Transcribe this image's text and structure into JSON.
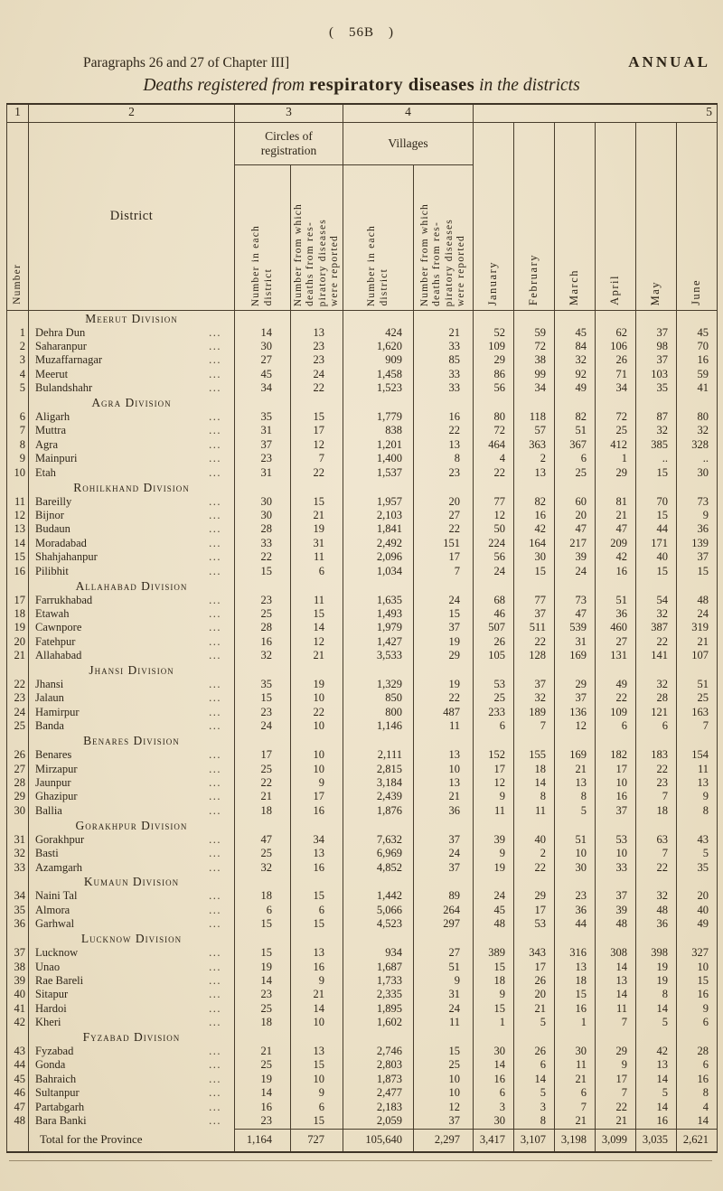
{
  "page": {
    "page_number": "( 56B )",
    "left_note": "Paragraphs 26 and 27 of Chapter III]",
    "right_note": "ANNUAL",
    "title_prefix": "Deaths registered from ",
    "title_bold": "respiratory diseases",
    "title_suffix": " in the districts"
  },
  "table": {
    "column_numbers": [
      "1",
      "2",
      "3",
      "4",
      "5"
    ],
    "headers": {
      "number_col": "Number",
      "district": "District",
      "circles_group": "Circles of registration",
      "villages_group": "Villages",
      "sub_number_each_lines": [
        "Number in each",
        "district"
      ],
      "sub_number_reported_lines": [
        "Number from which",
        "deaths from res-",
        "piratory diseases",
        "were reported"
      ],
      "months": [
        "January",
        "February",
        "March",
        "April",
        "May",
        "June"
      ]
    },
    "leader_dots": "...",
    "rows": [
      {
        "type": "division",
        "label": "Meerut Division"
      },
      {
        "type": "district",
        "num": "1",
        "name": "Dehra Dun",
        "values": [
          "14",
          "13",
          "424",
          "21",
          "52",
          "59",
          "45",
          "62",
          "37",
          "45"
        ]
      },
      {
        "type": "district",
        "num": "2",
        "name": "Saharanpur",
        "values": [
          "30",
          "23",
          "1,620",
          "33",
          "109",
          "72",
          "84",
          "106",
          "98",
          "70"
        ]
      },
      {
        "type": "district",
        "num": "3",
        "name": "Muzaffarnagar",
        "values": [
          "27",
          "23",
          "909",
          "85",
          "29",
          "38",
          "32",
          "26",
          "37",
          "16"
        ]
      },
      {
        "type": "district",
        "num": "4",
        "name": "Meerut",
        "values": [
          "45",
          "24",
          "1,458",
          "33",
          "86",
          "99",
          "92",
          "71",
          "103",
          "59"
        ]
      },
      {
        "type": "district",
        "num": "5",
        "name": "Bulandshahr",
        "values": [
          "34",
          "22",
          "1,523",
          "33",
          "56",
          "34",
          "49",
          "34",
          "35",
          "41"
        ]
      },
      {
        "type": "division",
        "label": "Agra Division"
      },
      {
        "type": "district",
        "num": "6",
        "name": "Aligarh",
        "values": [
          "35",
          "15",
          "1,779",
          "16",
          "80",
          "118",
          "82",
          "72",
          "87",
          "80"
        ]
      },
      {
        "type": "district",
        "num": "7",
        "name": "Muttra",
        "values": [
          "31",
          "17",
          "838",
          "22",
          "72",
          "57",
          "51",
          "25",
          "32",
          "32"
        ]
      },
      {
        "type": "district",
        "num": "8",
        "name": "Agra",
        "values": [
          "37",
          "12",
          "1,201",
          "13",
          "464",
          "363",
          "367",
          "412",
          "385",
          "328"
        ]
      },
      {
        "type": "district",
        "num": "9",
        "name": "Mainpuri",
        "values": [
          "23",
          "7",
          "1,400",
          "8",
          "4",
          "2",
          "6",
          "1",
          "..",
          ".."
        ]
      },
      {
        "type": "district",
        "num": "10",
        "name": "Etah",
        "values": [
          "31",
          "22",
          "1,537",
          "23",
          "22",
          "13",
          "25",
          "29",
          "15",
          "30"
        ]
      },
      {
        "type": "division",
        "label": "Rohilkhand Division"
      },
      {
        "type": "district",
        "num": "11",
        "name": "Bareilly",
        "values": [
          "30",
          "15",
          "1,957",
          "20",
          "77",
          "82",
          "60",
          "81",
          "70",
          "73"
        ]
      },
      {
        "type": "district",
        "num": "12",
        "name": "Bijnor",
        "values": [
          "30",
          "21",
          "2,103",
          "27",
          "12",
          "16",
          "20",
          "21",
          "15",
          "9"
        ]
      },
      {
        "type": "district",
        "num": "13",
        "name": "Budaun",
        "values": [
          "28",
          "19",
          "1,841",
          "22",
          "50",
          "42",
          "47",
          "47",
          "44",
          "36"
        ]
      },
      {
        "type": "district",
        "num": "14",
        "name": "Moradabad",
        "values": [
          "33",
          "31",
          "2,492",
          "151",
          "224",
          "164",
          "217",
          "209",
          "171",
          "139"
        ]
      },
      {
        "type": "district",
        "num": "15",
        "name": "Shahjahanpur",
        "values": [
          "22",
          "11",
          "2,096",
          "17",
          "56",
          "30",
          "39",
          "42",
          "40",
          "37"
        ]
      },
      {
        "type": "district",
        "num": "16",
        "name": "Pilibhit",
        "values": [
          "15",
          "6",
          "1,034",
          "7",
          "24",
          "15",
          "24",
          "16",
          "15",
          "15"
        ]
      },
      {
        "type": "division",
        "label": "Allahabad Division"
      },
      {
        "type": "district",
        "num": "17",
        "name": "Farrukhabad",
        "values": [
          "23",
          "11",
          "1,635",
          "24",
          "68",
          "77",
          "73",
          "51",
          "54",
          "48"
        ]
      },
      {
        "type": "district",
        "num": "18",
        "name": "Etawah",
        "values": [
          "25",
          "15",
          "1,493",
          "15",
          "46",
          "37",
          "47",
          "36",
          "32",
          "24"
        ]
      },
      {
        "type": "district",
        "num": "19",
        "name": "Cawnpore",
        "values": [
          "28",
          "14",
          "1,979",
          "37",
          "507",
          "511",
          "539",
          "460",
          "387",
          "319"
        ]
      },
      {
        "type": "district",
        "num": "20",
        "name": "Fatehpur",
        "values": [
          "16",
          "12",
          "1,427",
          "19",
          "26",
          "22",
          "31",
          "27",
          "22",
          "21"
        ]
      },
      {
        "type": "district",
        "num": "21",
        "name": "Allahabad",
        "values": [
          "32",
          "21",
          "3,533",
          "29",
          "105",
          "128",
          "169",
          "131",
          "141",
          "107"
        ]
      },
      {
        "type": "division",
        "label": "Jhansi Division"
      },
      {
        "type": "district",
        "num": "22",
        "name": "Jhansi",
        "values": [
          "35",
          "19",
          "1,329",
          "19",
          "53",
          "37",
          "29",
          "49",
          "32",
          "51"
        ]
      },
      {
        "type": "district",
        "num": "23",
        "name": "Jalaun",
        "values": [
          "15",
          "10",
          "850",
          "22",
          "25",
          "32",
          "37",
          "22",
          "28",
          "25"
        ]
      },
      {
        "type": "district",
        "num": "24",
        "name": "Hamirpur",
        "values": [
          "23",
          "22",
          "800",
          "487",
          "233",
          "189",
          "136",
          "109",
          "121",
          "163"
        ]
      },
      {
        "type": "district",
        "num": "25",
        "name": "Banda",
        "values": [
          "24",
          "10",
          "1,146",
          "11",
          "6",
          "7",
          "12",
          "6",
          "6",
          "7"
        ]
      },
      {
        "type": "division",
        "label": "Benares Division"
      },
      {
        "type": "district",
        "num": "26",
        "name": "Benares",
        "values": [
          "17",
          "10",
          "2,111",
          "13",
          "152",
          "155",
          "169",
          "182",
          "183",
          "154"
        ]
      },
      {
        "type": "district",
        "num": "27",
        "name": "Mirzapur",
        "values": [
          "25",
          "10",
          "2,815",
          "10",
          "17",
          "18",
          "21",
          "17",
          "22",
          "11"
        ]
      },
      {
        "type": "district",
        "num": "28",
        "name": "Jaunpur",
        "values": [
          "22",
          "9",
          "3,184",
          "13",
          "12",
          "14",
          "13",
          "10",
          "23",
          "13"
        ]
      },
      {
        "type": "district",
        "num": "29",
        "name": "Ghazipur",
        "values": [
          "21",
          "17",
          "2,439",
          "21",
          "9",
          "8",
          "8",
          "16",
          "7",
          "9"
        ]
      },
      {
        "type": "district",
        "num": "30",
        "name": "Ballia",
        "values": [
          "18",
          "16",
          "1,876",
          "36",
          "11",
          "11",
          "5",
          "37",
          "18",
          "8"
        ]
      },
      {
        "type": "division",
        "label": "Gorakhpur Division"
      },
      {
        "type": "district",
        "num": "31",
        "name": "Gorakhpur",
        "values": [
          "47",
          "34",
          "7,632",
          "37",
          "39",
          "40",
          "51",
          "53",
          "63",
          "43"
        ]
      },
      {
        "type": "district",
        "num": "32",
        "name": "Basti",
        "values": [
          "25",
          "13",
          "6,969",
          "24",
          "9",
          "2",
          "10",
          "10",
          "7",
          "5"
        ]
      },
      {
        "type": "district",
        "num": "33",
        "name": "Azamgarh",
        "values": [
          "32",
          "16",
          "4,852",
          "37",
          "19",
          "22",
          "30",
          "33",
          "22",
          "35"
        ]
      },
      {
        "type": "division",
        "label": "Kumaun Division"
      },
      {
        "type": "district",
        "num": "34",
        "name": "Naini Tal",
        "values": [
          "18",
          "15",
          "1,442",
          "89",
          "24",
          "29",
          "23",
          "37",
          "32",
          "20"
        ]
      },
      {
        "type": "district",
        "num": "35",
        "name": "Almora",
        "values": [
          "6",
          "6",
          "5,066",
          "264",
          "45",
          "17",
          "36",
          "39",
          "48",
          "40"
        ]
      },
      {
        "type": "district",
        "num": "36",
        "name": "Garhwal",
        "values": [
          "15",
          "15",
          "4,523",
          "297",
          "48",
          "53",
          "44",
          "48",
          "36",
          "49"
        ]
      },
      {
        "type": "division",
        "label": "Lucknow Division"
      },
      {
        "type": "district",
        "num": "37",
        "name": "Lucknow",
        "values": [
          "15",
          "13",
          "934",
          "27",
          "389",
          "343",
          "316",
          "308",
          "398",
          "327"
        ]
      },
      {
        "type": "district",
        "num": "38",
        "name": "Unao",
        "values": [
          "19",
          "16",
          "1,687",
          "51",
          "15",
          "17",
          "13",
          "14",
          "19",
          "10"
        ]
      },
      {
        "type": "district",
        "num": "39",
        "name": "Rae Bareli",
        "values": [
          "14",
          "9",
          "1,733",
          "9",
          "18",
          "26",
          "18",
          "13",
          "19",
          "15"
        ]
      },
      {
        "type": "district",
        "num": "40",
        "name": "Sitapur",
        "values": [
          "23",
          "21",
          "2,335",
          "31",
          "9",
          "20",
          "15",
          "14",
          "8",
          "16"
        ]
      },
      {
        "type": "district",
        "num": "41",
        "name": "Hardoi",
        "values": [
          "25",
          "14",
          "1,895",
          "24",
          "15",
          "21",
          "16",
          "11",
          "14",
          "9"
        ]
      },
      {
        "type": "district",
        "num": "42",
        "name": "Kheri",
        "values": [
          "18",
          "10",
          "1,602",
          "11",
          "1",
          "5",
          "1",
          "7",
          "5",
          "6"
        ]
      },
      {
        "type": "division",
        "label": "Fyzabad Division"
      },
      {
        "type": "district",
        "num": "43",
        "name": "Fyzabad",
        "values": [
          "21",
          "13",
          "2,746",
          "15",
          "30",
          "26",
          "30",
          "29",
          "42",
          "28"
        ]
      },
      {
        "type": "district",
        "num": "44",
        "name": "Gonda",
        "values": [
          "25",
          "15",
          "2,803",
          "25",
          "14",
          "6",
          "11",
          "9",
          "13",
          "6"
        ]
      },
      {
        "type": "district",
        "num": "45",
        "name": "Bahraich",
        "values": [
          "19",
          "10",
          "1,873",
          "10",
          "16",
          "14",
          "21",
          "17",
          "14",
          "16"
        ]
      },
      {
        "type": "district",
        "num": "46",
        "name": "Sultanpur",
        "values": [
          "14",
          "9",
          "2,477",
          "10",
          "6",
          "5",
          "6",
          "7",
          "5",
          "8"
        ]
      },
      {
        "type": "district",
        "num": "47",
        "name": "Partabgarh",
        "values": [
          "16",
          "6",
          "2,183",
          "12",
          "3",
          "3",
          "7",
          "22",
          "14",
          "4"
        ]
      },
      {
        "type": "district",
        "num": "48",
        "name": "Bara Banki",
        "values": [
          "23",
          "15",
          "2,059",
          "37",
          "30",
          "8",
          "21",
          "21",
          "16",
          "14"
        ]
      }
    ],
    "total": {
      "label": "Total for the Province",
      "values": [
        "1,164",
        "727",
        "105,640",
        "2,297",
        "3,417",
        "3,107",
        "3,198",
        "3,099",
        "3,035",
        "2,621"
      ]
    }
  }
}
